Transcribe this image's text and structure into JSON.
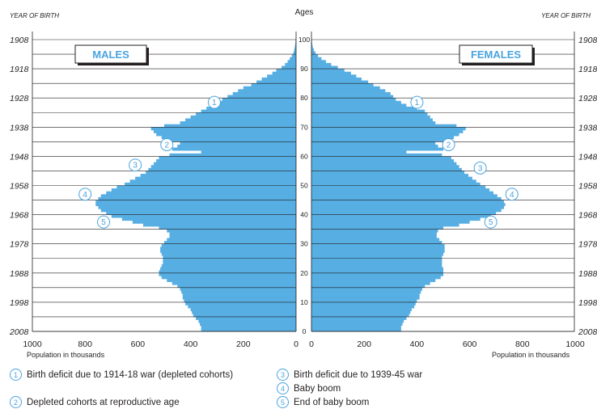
{
  "chart_data": {
    "type": "population-pyramid",
    "title": "",
    "left_header": "YEAR OF BIRTH",
    "right_header": "YEAR OF BIRTH",
    "center_header": "Ages",
    "x_label_left": "Population in thousands",
    "x_label_right": "Population in thousands",
    "male_label": "MALES",
    "female_label": "FEMALES",
    "xlim": [
      0,
      1000
    ],
    "x_ticks": [
      1000,
      800,
      600,
      400,
      200,
      0
    ],
    "x_ticks_right": [
      0,
      200,
      400,
      600,
      800,
      1000
    ],
    "age_ticks": [
      0,
      10,
      20,
      30,
      40,
      50,
      60,
      70,
      80,
      90,
      100
    ],
    "year_ticks": [
      "1908",
      "1918",
      "1928",
      "1938",
      "1948",
      "1958",
      "1968",
      "1978",
      "1988",
      "1998",
      "2008"
    ],
    "bar_color": "#56aee3",
    "ages": [
      0,
      1,
      2,
      3,
      4,
      5,
      6,
      7,
      8,
      9,
      10,
      11,
      12,
      13,
      14,
      15,
      16,
      17,
      18,
      19,
      20,
      21,
      22,
      23,
      24,
      25,
      26,
      27,
      28,
      29,
      30,
      31,
      32,
      33,
      34,
      35,
      36,
      37,
      38,
      39,
      40,
      41,
      42,
      43,
      44,
      45,
      46,
      47,
      48,
      49,
      50,
      51,
      52,
      53,
      54,
      55,
      56,
      57,
      58,
      59,
      60,
      61,
      62,
      63,
      64,
      65,
      66,
      67,
      68,
      69,
      70,
      71,
      72,
      73,
      74,
      75,
      76,
      77,
      78,
      79,
      80,
      81,
      82,
      83,
      84,
      85,
      86,
      87,
      88,
      89,
      90,
      91,
      92,
      93,
      94,
      95,
      96,
      97,
      98,
      99,
      100
    ],
    "series": [
      {
        "name": "MALES",
        "values": [
          360,
          360,
          365,
          370,
          380,
          390,
          395,
          400,
          410,
          420,
          425,
          430,
          430,
          435,
          440,
          450,
          470,
          490,
          510,
          520,
          520,
          515,
          510,
          505,
          505,
          505,
          510,
          515,
          515,
          510,
          500,
          490,
          480,
          480,
          490,
          520,
          580,
          620,
          660,
          700,
          720,
          740,
          750,
          760,
          760,
          750,
          740,
          720,
          700,
          680,
          650,
          630,
          610,
          590,
          570,
          560,
          550,
          540,
          530,
          520,
          480,
          360,
          470,
          450,
          440,
          490,
          510,
          530,
          540,
          550,
          500,
          440,
          420,
          400,
          380,
          360,
          340,
          320,
          300,
          280,
          260,
          240,
          220,
          200,
          170,
          150,
          130,
          110,
          90,
          75,
          55,
          42,
          32,
          24,
          16,
          10,
          7,
          5,
          3,
          2,
          1
        ]
      },
      {
        "name": "FEMALES",
        "values": [
          340,
          340,
          345,
          350,
          360,
          370,
          375,
          380,
          390,
          395,
          400,
          410,
          410,
          415,
          420,
          430,
          450,
          470,
          490,
          500,
          500,
          500,
          495,
          495,
          495,
          495,
          500,
          505,
          505,
          505,
          495,
          485,
          475,
          475,
          480,
          500,
          560,
          600,
          640,
          680,
          700,
          720,
          730,
          735,
          730,
          720,
          705,
          690,
          675,
          660,
          640,
          625,
          610,
          595,
          580,
          570,
          560,
          550,
          540,
          530,
          495,
          360,
          500,
          480,
          470,
          520,
          540,
          560,
          575,
          585,
          550,
          470,
          460,
          450,
          440,
          430,
          400,
          360,
          340,
          320,
          310,
          300,
          280,
          260,
          235,
          215,
          190,
          170,
          150,
          125,
          100,
          75,
          55,
          38,
          25,
          15,
          9,
          5,
          3,
          2,
          1
        ]
      }
    ],
    "annotations": [
      {
        "id": "1",
        "side": "male",
        "value": 310,
        "age": 78.5
      },
      {
        "id": "2",
        "side": "male",
        "value": 490,
        "age": 64
      },
      {
        "id": "3",
        "side": "male",
        "value": 610,
        "age": 57
      },
      {
        "id": "4",
        "side": "male",
        "value": 800,
        "age": 47
      },
      {
        "id": "5",
        "side": "male",
        "value": 730,
        "age": 37.5
      },
      {
        "id": "1",
        "side": "female",
        "value": 400,
        "age": 78.5
      },
      {
        "id": "2",
        "side": "female",
        "value": 520,
        "age": 64
      },
      {
        "id": "3",
        "side": "female",
        "value": 640,
        "age": 56
      },
      {
        "id": "4",
        "side": "female",
        "value": 760,
        "age": 47
      },
      {
        "id": "5",
        "side": "female",
        "value": 680,
        "age": 37.5
      }
    ]
  },
  "legend": [
    {
      "num": "1",
      "text": "Birth deficit due to 1914-18 war (depleted cohorts)"
    },
    {
      "num": "2",
      "text": "Depleted cohorts at reproductive age"
    },
    {
      "num": "3",
      "text": "Birth deficit due to 1939-45 war"
    },
    {
      "num": "4",
      "text": "Baby boom"
    },
    {
      "num": "5",
      "text": "End of baby boom"
    }
  ]
}
